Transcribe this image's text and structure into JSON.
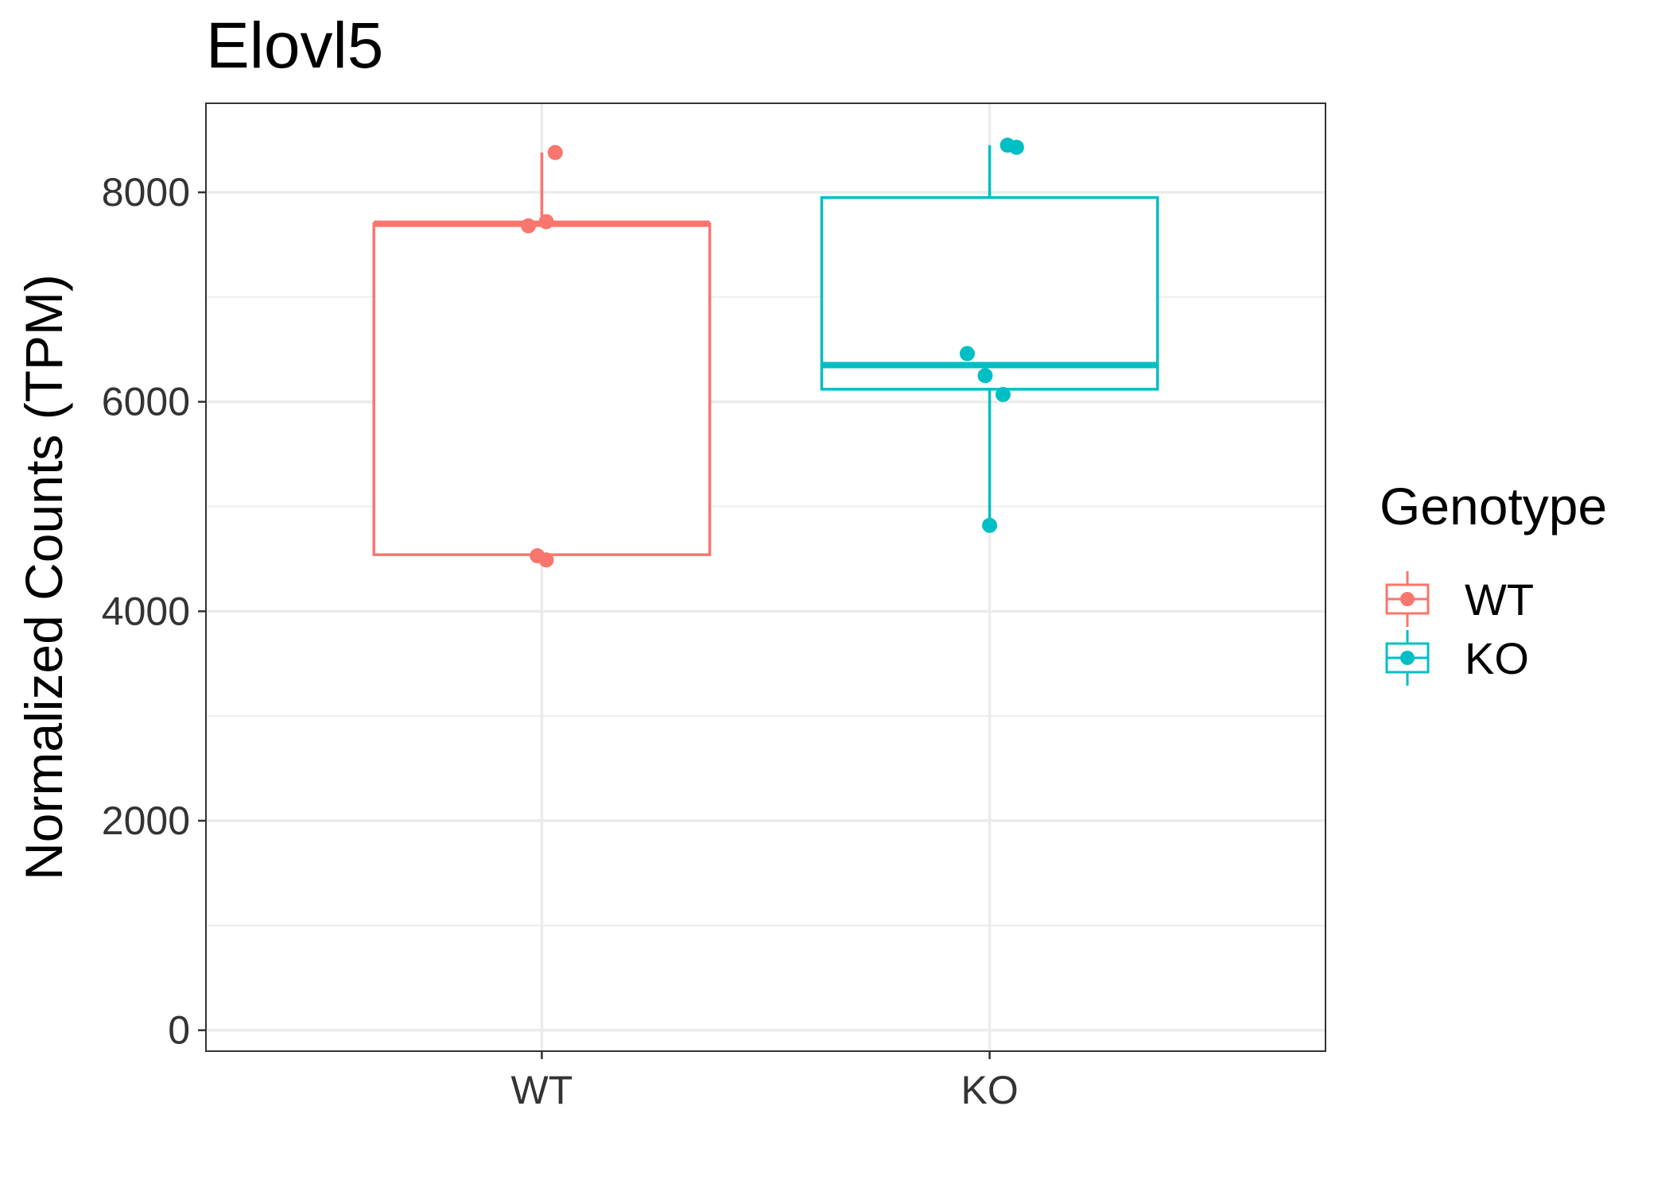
{
  "chart_data": {
    "type": "box",
    "title": "Elovl5",
    "xlabel": "",
    "ylabel": "Normalized Counts (TPM)",
    "categories": [
      "WT",
      "KO"
    ],
    "ylim": [
      -200,
      8850
    ],
    "yticks": [
      0,
      2000,
      4000,
      6000,
      8000
    ],
    "grid": true,
    "legend": {
      "title": "Genotype",
      "placement": "right"
    },
    "series": [
      {
        "name": "WT",
        "color": "#F8766D",
        "box": {
          "whisker_low": 4540,
          "q1": 4540,
          "median": 7700,
          "q3": 7700,
          "whisker_high": 8380
        },
        "points": [
          {
            "x_jitter": -0.03,
            "y": 7680
          },
          {
            "x_jitter": 0.01,
            "y": 7720
          },
          {
            "x_jitter": 0.03,
            "y": 8380
          },
          {
            "x_jitter": -0.01,
            "y": 4530
          },
          {
            "x_jitter": 0.01,
            "y": 4490
          }
        ]
      },
      {
        "name": "KO",
        "color": "#00BFC4",
        "box": {
          "whisker_low": 4840,
          "q1": 6120,
          "median": 6350,
          "q3": 7950,
          "whisker_high": 8450
        },
        "points": [
          {
            "x_jitter": 0.04,
            "y": 8450
          },
          {
            "x_jitter": 0.06,
            "y": 8430
          },
          {
            "x_jitter": -0.05,
            "y": 6460
          },
          {
            "x_jitter": -0.01,
            "y": 6250
          },
          {
            "x_jitter": 0.03,
            "y": 6070
          },
          {
            "x_jitter": 0.0,
            "y": 4820
          }
        ]
      }
    ]
  }
}
